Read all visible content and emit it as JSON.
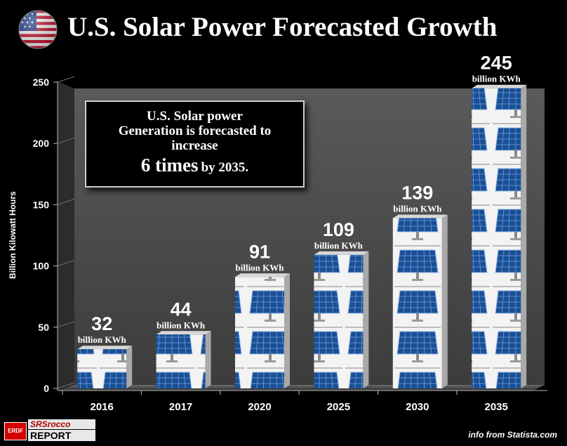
{
  "title": "U.S. Solar Power Forecasted Growth",
  "note": {
    "line1": "U.S. Solar power",
    "line2": "Generation is forecasted to",
    "line3": "increase",
    "emphasis": "6 times",
    "tail": "by 2035."
  },
  "logo": {
    "badge": "ERDF",
    "line1": "SRSrocco",
    "line2": "REPORT"
  },
  "source": "info from Statista.com",
  "colors": {
    "background": "#000000",
    "plot_area": "#4a4a4a",
    "bar_face": "#f2f2f2",
    "panel_blue": "#1f5fa8"
  },
  "chart_data": {
    "type": "bar",
    "title": "U.S. Solar Power Forecasted Growth",
    "xlabel": "",
    "ylabel": "Billion  Kilowatt Hours",
    "categories": [
      "2016",
      "2017",
      "2020",
      "2025",
      "2030",
      "2035"
    ],
    "values": [
      32,
      44,
      91,
      109,
      139,
      245
    ],
    "value_labels": [
      "32",
      "44",
      "91",
      "109",
      "139",
      "245"
    ],
    "unit_label": "billion KWh",
    "ylim": [
      0,
      250
    ],
    "yticks": [
      0,
      50,
      100,
      150,
      200,
      250
    ],
    "grid": false,
    "legend": "none"
  }
}
